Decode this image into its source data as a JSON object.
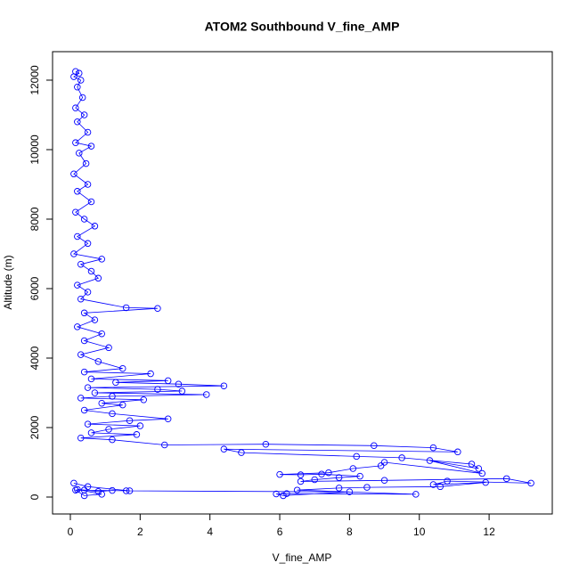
{
  "chart_data": {
    "type": "line",
    "title": "ATOM2 Southbound V_fine_AMP",
    "x_label": "V_fine_AMP",
    "y_label": "Altitude (m)",
    "color": "#0000ff",
    "markers": "open-circle",
    "xlim": [
      -0.51,
      13.81
    ],
    "ylim": [
      -487,
      12820
    ],
    "xticks": [
      0,
      2,
      4,
      6,
      8,
      10,
      12
    ],
    "yticks": [
      0,
      2000,
      4000,
      6000,
      8000,
      10000,
      12000
    ],
    "x": [
      0.15,
      0.25,
      0.1,
      0.3,
      0.2,
      0.35,
      0.15,
      0.4,
      0.2,
      0.5,
      0.15,
      0.6,
      0.25,
      0.45,
      0.1,
      0.5,
      0.2,
      0.6,
      0.15,
      0.4,
      0.7,
      0.2,
      0.5,
      0.1,
      0.9,
      0.3,
      0.6,
      0.8,
      0.2,
      0.5,
      0.3,
      1.6,
      2.5,
      0.4,
      0.7,
      0.2,
      0.9,
      0.4,
      1.1,
      0.3,
      0.8,
      1.5,
      0.4,
      2.3,
      0.6,
      2.8,
      1.3,
      3.1,
      4.4,
      0.5,
      2.5,
      3.2,
      0.7,
      3.9,
      1.2,
      0.3,
      2.1,
      0.9,
      1.5,
      0.4,
      1.2,
      2.8,
      1.7,
      0.5,
      2.0,
      1.1,
      0.6,
      1.9,
      0.3,
      1.2,
      2.7,
      5.6,
      8.7,
      10.4,
      11.1,
      4.4,
      4.9,
      8.2,
      9.5,
      11.5,
      11.7,
      10.3,
      11.8,
      9.0,
      8.9,
      8.1,
      7.4,
      6.0,
      6.6,
      7.2,
      8.3,
      7.7,
      7.0,
      6.6,
      9.0,
      12.5,
      13.2,
      10.8,
      10.4,
      11.9,
      10.6,
      8.5,
      7.7,
      6.5,
      9.9,
      6.2,
      5.9,
      6.1,
      8.0,
      1.6,
      1.2,
      0.8,
      0.4,
      0.2,
      0.9,
      0.4,
      0.15,
      1.7,
      0.5,
      0.1
    ],
    "series": [
      {
        "values": [
          12250,
          12200,
          12100,
          12000,
          11800,
          11500,
          11200,
          11000,
          10800,
          10500,
          10200,
          10100,
          9900,
          9600,
          9300,
          9000,
          8800,
          8500,
          8200,
          8000,
          7800,
          7500,
          7300,
          7000,
          6850,
          6700,
          6500,
          6300,
          6100,
          5900,
          5700,
          5450,
          5430,
          5300,
          5100,
          4900,
          4700,
          4500,
          4300,
          4100,
          3900,
          3700,
          3600,
          3550,
          3400,
          3350,
          3300,
          3250,
          3200,
          3150,
          3100,
          3050,
          3000,
          2950,
          2900,
          2850,
          2800,
          2700,
          2650,
          2500,
          2400,
          2250,
          2200,
          2100,
          2050,
          1950,
          1850,
          1800,
          1700,
          1650,
          1500,
          1520,
          1480,
          1420,
          1300,
          1380,
          1280,
          1170,
          1130,
          950,
          820,
          1050,
          680,
          1000,
          900,
          820,
          700,
          650,
          640,
          660,
          600,
          560,
          500,
          450,
          480,
          530,
          400,
          460,
          360,
          420,
          300,
          280,
          260,
          200,
          80,
          100,
          90,
          40,
          150,
          180,
          190,
          160,
          200,
          220,
          80,
          40,
          200,
          180,
          300,
          400
        ]
      }
    ]
  }
}
